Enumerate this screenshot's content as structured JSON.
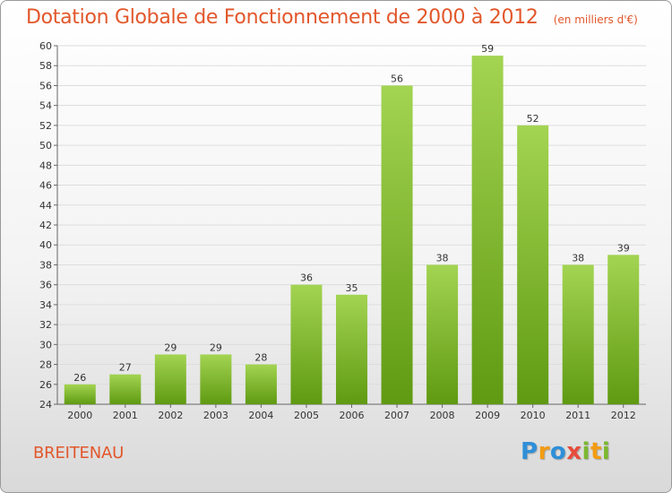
{
  "chart_data": {
    "type": "bar",
    "title": "Dotation Globale de Fonctionnement de 2000 à 2012",
    "subtitle": "(en milliers d'€)",
    "xlabel": "",
    "ylabel": "",
    "categories": [
      "2000",
      "2001",
      "2002",
      "2003",
      "2004",
      "2005",
      "2006",
      "2007",
      "2008",
      "2009",
      "2010",
      "2011",
      "2012"
    ],
    "values": [
      26,
      27,
      29,
      29,
      28,
      36,
      35,
      56,
      38,
      59,
      52,
      38,
      39
    ],
    "ylim": [
      24,
      60
    ],
    "yticks": [
      24,
      26,
      28,
      30,
      32,
      34,
      36,
      38,
      40,
      42,
      44,
      46,
      48,
      50,
      52,
      54,
      56,
      58,
      60
    ],
    "grid": true,
    "bar_color_top": "#a3d452",
    "bar_color_bottom": "#5f9a12",
    "grid_color": "#dddddd"
  },
  "place_name": "BREITENAU",
  "logo": {
    "letters": [
      "P",
      "r",
      "o",
      "x",
      "i",
      "t",
      "i"
    ],
    "colors": [
      "#2f8fd8",
      "#f39c12",
      "#2f8fd8",
      "#e74c3c",
      "#7cb82f",
      "#f39c12",
      "#7cb82f"
    ]
  },
  "accent_color": "#e2572b"
}
